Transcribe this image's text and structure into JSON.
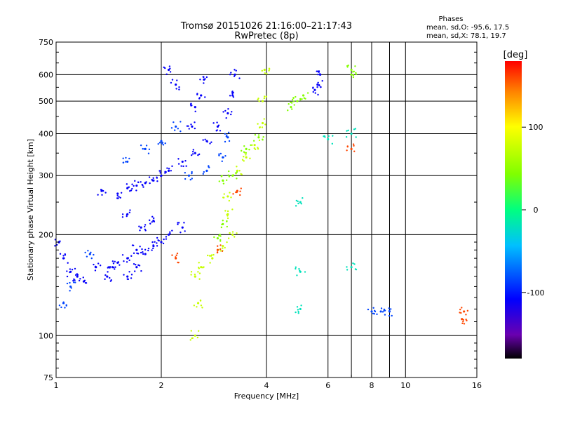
{
  "chart_data": {
    "type": "scatter",
    "title": "Tromsø 20151026 21:16:00–21:17:43",
    "subtitle": "RwPretec (8p)",
    "xlabel": "Frequency [MHz]",
    "ylabel": "Stationary phase Virtual Height [km]",
    "xscale": "log",
    "yscale": "log",
    "xlim": [
      1,
      16
    ],
    "ylim": [
      75,
      750
    ],
    "xticks": [
      1,
      2,
      4,
      6,
      8,
      10,
      16
    ],
    "xticks_minor": [
      7,
      9
    ],
    "yticks": [
      75,
      100,
      200,
      300,
      400,
      500,
      600,
      750
    ],
    "grid": true,
    "phase_stats": {
      "heading": "Phases",
      "o_line": "mean, sd,O: -95.6, 17.5",
      "x_line": "mean, sd,X:  78.1, 19.7"
    },
    "colorbar": {
      "label": "[deg]",
      "range": [
        -180,
        180
      ],
      "ticks": [
        -100,
        0,
        100
      ],
      "colors": [
        "#000000",
        "#6a00b0",
        "#0000ff",
        "#00c0ff",
        "#00ff80",
        "#80ff00",
        "#ffff00",
        "#ff8000",
        "#ff0000"
      ]
    },
    "series": [
      {
        "phase": -110,
        "points": [
          [
            1.02,
            190
          ],
          [
            1.05,
            170
          ],
          [
            1.1,
            155
          ],
          [
            1.15,
            150
          ],
          [
            1.2,
            145
          ],
          [
            1.3,
            160
          ],
          [
            1.4,
            150
          ],
          [
            1.5,
            165
          ],
          [
            1.6,
            170
          ],
          [
            1.7,
            180
          ],
          [
            1.8,
            175
          ],
          [
            1.9,
            185
          ],
          [
            2.0,
            190
          ],
          [
            1.35,
            270
          ],
          [
            1.5,
            265
          ],
          [
            1.6,
            275
          ],
          [
            1.7,
            280
          ],
          [
            1.8,
            285
          ],
          [
            1.9,
            290
          ],
          [
            2.0,
            300
          ],
          [
            2.1,
            310
          ],
          [
            2.3,
            330
          ],
          [
            2.5,
            350
          ],
          [
            2.7,
            380
          ],
          [
            2.9,
            420
          ],
          [
            3.1,
            460
          ],
          [
            3.2,
            520
          ],
          [
            3.25,
            600
          ],
          [
            2.2,
            560
          ],
          [
            2.1,
            620
          ],
          [
            2.5,
            480
          ],
          [
            2.6,
            520
          ],
          [
            2.65,
            580
          ],
          [
            2.45,
            420
          ],
          [
            1.6,
            230
          ],
          [
            1.75,
            210
          ],
          [
            1.9,
            220
          ],
          [
            2.1,
            200
          ],
          [
            2.3,
            210
          ],
          [
            1.45,
            160
          ],
          [
            1.6,
            150
          ],
          [
            1.7,
            160
          ],
          [
            5.5,
            540
          ],
          [
            5.6,
            560
          ],
          [
            5.7,
            600
          ]
        ]
      },
      {
        "phase": -85,
        "points": [
          [
            1.6,
            330
          ],
          [
            1.8,
            360
          ],
          [
            2.0,
            380
          ],
          [
            2.2,
            420
          ],
          [
            2.4,
            300
          ],
          [
            2.7,
            310
          ],
          [
            3.0,
            340
          ],
          [
            3.1,
            390
          ],
          [
            1.1,
            140
          ],
          [
            1.05,
            125
          ],
          [
            1.25,
            175
          ],
          [
            8.0,
            118
          ],
          [
            8.5,
            118
          ],
          [
            9.0,
            118
          ]
        ]
      },
      {
        "phase": 75,
        "points": [
          [
            2.5,
            150
          ],
          [
            2.6,
            160
          ],
          [
            2.8,
            170
          ],
          [
            3.0,
            185
          ],
          [
            3.2,
            200
          ],
          [
            3.1,
            230
          ],
          [
            3.1,
            260
          ],
          [
            3.3,
            310
          ],
          [
            3.5,
            340
          ],
          [
            3.7,
            370
          ],
          [
            3.9,
            430
          ],
          [
            3.9,
            500
          ],
          [
            3.95,
            620
          ],
          [
            2.5,
            100
          ],
          [
            2.55,
            125
          ]
        ]
      },
      {
        "phase": 45,
        "points": [
          [
            3.0,
            290
          ],
          [
            3.2,
            300
          ],
          [
            3.5,
            360
          ],
          [
            3.8,
            390
          ],
          [
            2.9,
            195
          ],
          [
            3.0,
            215
          ],
          [
            4.7,
            480
          ],
          [
            4.9,
            500
          ],
          [
            5.1,
            520
          ],
          [
            7.0,
            600
          ],
          [
            7.0,
            620
          ]
        ]
      },
      {
        "phase": 160,
        "points": [
          [
            2.2,
            170
          ],
          [
            2.9,
            180
          ],
          [
            3.3,
            270
          ],
          [
            7.0,
            360
          ],
          [
            14.5,
            112
          ],
          [
            14.7,
            118
          ]
        ]
      },
      {
        "phase": -20,
        "points": [
          [
            5.0,
            120
          ],
          [
            5.0,
            155
          ],
          [
            5.0,
            250
          ],
          [
            6.0,
            385
          ],
          [
            7.0,
            160
          ],
          [
            7.0,
            400
          ]
        ]
      }
    ]
  }
}
